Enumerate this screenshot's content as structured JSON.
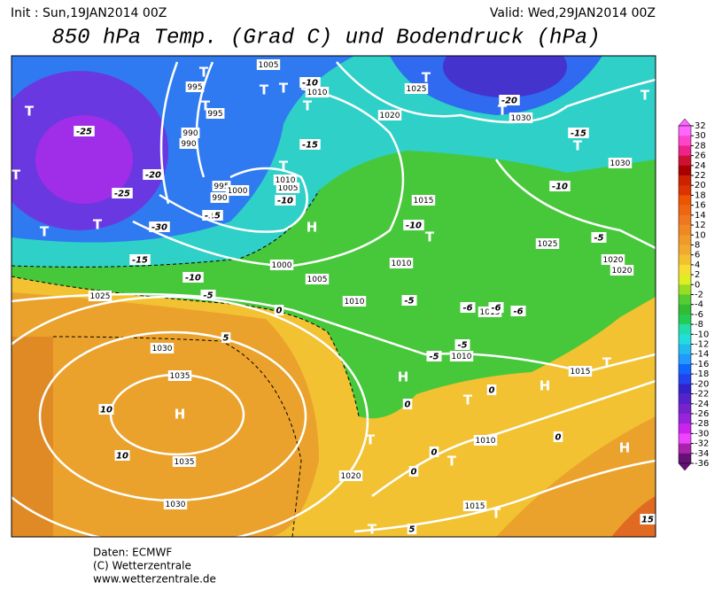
{
  "header": {
    "init": "Init : Sun,19JAN2014 00Z",
    "valid": "Valid: Wed,29JAN2014 00Z",
    "title": "850 hPa Temp. (Grad C) und Bodendruck (hPa)"
  },
  "footer": [
    "Daten: ECMWF",
    "(C) Wetterzentrale",
    "www.wetterzentrale.de"
  ],
  "colorbar": {
    "ticks": [
      32,
      30,
      28,
      26,
      24,
      22,
      20,
      18,
      16,
      14,
      12,
      10,
      8,
      6,
      4,
      2,
      0,
      -2,
      -4,
      -6,
      -8,
      -10,
      -12,
      -14,
      -16,
      -18,
      -20,
      -22,
      -24,
      -26,
      -28,
      -30,
      -32,
      -34,
      -36
    ],
    "colors": [
      "#ff66ff",
      "#ff44cc",
      "#ee2288",
      "#cc1133",
      "#aa0000",
      "#cc2200",
      "#dd3300",
      "#ee5500",
      "#ee6611",
      "#f07722",
      "#f08822",
      "#f09a2a",
      "#f0aa30",
      "#f5c030",
      "#f5dd33",
      "#ddee22",
      "#99dd22",
      "#55cc33",
      "#33bb33",
      "#22cc55",
      "#22ddaa",
      "#22dddd",
      "#22bbee",
      "#2299ff",
      "#1166ff",
      "#2244ee",
      "#3322cc",
      "#5522cc",
      "#7722cc",
      "#9922dd",
      "#cc22ee",
      "#ee44ff",
      "#aa22aa",
      "#661177"
    ]
  },
  "map": {
    "pressure_labels": [
      "1005",
      "1010",
      "995",
      "995",
      "990",
      "990",
      "995",
      "1000",
      "990",
      "1005",
      "1010",
      "1025",
      "1020",
      "1030",
      "1030",
      "1015",
      "1010",
      "1000",
      "1005",
      "1010",
      "1025",
      "1030",
      "1035",
      "1035",
      "1030",
      "1025",
      "1020",
      "1020",
      "1015",
      "1010",
      "1015",
      "1010",
      "1020",
      "1015"
    ],
    "temperature_labels": [
      "-25",
      "-20",
      "-25",
      "-30",
      "-15",
      "-10",
      "-5",
      "0",
      "5",
      "10",
      "10",
      "-15",
      "-10",
      "-15",
      "-10",
      "-20",
      "-15",
      "-10",
      "-5",
      "-10",
      "-5",
      "-6",
      "-6",
      "-6",
      "-5",
      "-5",
      "0",
      "0",
      "0",
      "0",
      "5",
      "15",
      "0"
    ],
    "markers": [
      "H",
      "H",
      "H",
      "H",
      "H",
      "T",
      "T",
      "T",
      "T",
      "T",
      "T",
      "T",
      "T",
      "T",
      "T",
      "T",
      "T",
      "T",
      "T",
      "T",
      "T",
      "T",
      "T",
      "T",
      "T",
      "T",
      "T"
    ]
  }
}
